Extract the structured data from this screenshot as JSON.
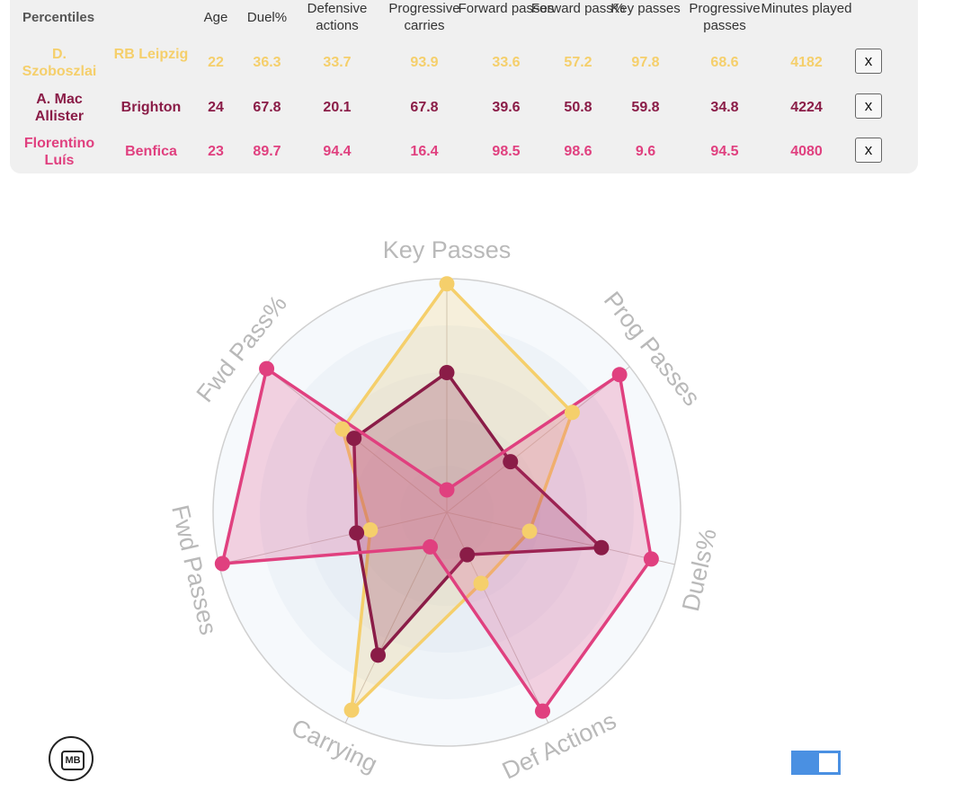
{
  "table": {
    "title": "Percentiles",
    "headers": [
      "Age",
      "Duel%",
      "Defensive actions",
      "Progressive carries",
      "Forward passes",
      "Forward pass%",
      "Key passes",
      "Progressive passes",
      "Minutes played"
    ],
    "rows": [
      {
        "player": "D. Szoboszlai",
        "team": "RB Leipzig",
        "age": "22",
        "duel": "36.3",
        "def_actions": "33.7",
        "prog_carries": "93.9",
        "fwd_passes": "33.6",
        "fwd_pass_pct": "57.2",
        "key_passes": "97.8",
        "prog_passes": "68.6",
        "minutes": "4182",
        "remove_label": "x",
        "color": "#f5cf6b"
      },
      {
        "player": "A. Mac Allister",
        "team": "Brighton",
        "age": "24",
        "duel": "67.8",
        "def_actions": "20.1",
        "prog_carries": "67.8",
        "fwd_passes": "39.6",
        "fwd_pass_pct": "50.8",
        "key_passes": "59.8",
        "prog_passes": "34.8",
        "minutes": "4224",
        "remove_label": "x",
        "color": "#8a1c47"
      },
      {
        "player": "Florentino Luís",
        "team": "Benfica",
        "age": "23",
        "duel": "89.7",
        "def_actions": "94.4",
        "prog_carries": "16.4",
        "fwd_passes": "98.5",
        "fwd_pass_pct": "98.6",
        "key_passes": "9.6",
        "prog_passes": "94.5",
        "minutes": "4080",
        "remove_label": "x",
        "color": "#e0407f"
      }
    ]
  },
  "chart_data": {
    "type": "radar",
    "axes": [
      "Key Passes",
      "Prog Passes",
      "Duels%",
      "Def Actions",
      "Carrying",
      "Fwd Passes",
      "Fwd Pass%"
    ],
    "range": [
      0,
      100
    ],
    "series": [
      {
        "name": "D. Szoboszlai",
        "color": "#f5cf6b",
        "values": [
          97.8,
          68.6,
          36.3,
          33.7,
          93.9,
          33.6,
          57.2
        ]
      },
      {
        "name": "A. Mac Allister",
        "color": "#8a1c47",
        "values": [
          59.8,
          34.8,
          67.8,
          20.1,
          67.8,
          39.6,
          50.8
        ]
      },
      {
        "name": "Florentino Luís",
        "color": "#e0407f",
        "values": [
          9.6,
          94.5,
          89.7,
          94.4,
          16.4,
          98.5,
          98.6
        ]
      }
    ]
  },
  "logo": {
    "text": "MB"
  },
  "toggle": {
    "state": "on",
    "color": "#4a90e2"
  }
}
